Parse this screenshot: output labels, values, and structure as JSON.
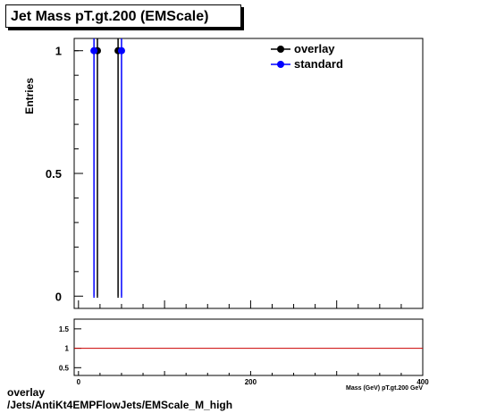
{
  "title": "Jet Mass pT.gt.200 (EMScale)",
  "caption_line1": "overlay",
  "caption_line2": "/Jets/AntiKt4EMPFlowJets/EMScale_M_high",
  "chart_data": [
    {
      "type": "scatter",
      "ylabel": "Entries",
      "xlim": [
        -5,
        400
      ],
      "ylim": [
        -0.05,
        1.05
      ],
      "y_ticks": [
        {
          "value": 0,
          "label": "0"
        },
        {
          "value": 0.5,
          "label": "0.5"
        },
        {
          "value": 1,
          "label": "1"
        }
      ],
      "legend": {
        "placement": "top-right"
      },
      "series": [
        {
          "name": "overlay",
          "color": "#000000",
          "x": [
            22,
            46
          ],
          "y": [
            1,
            1
          ]
        },
        {
          "name": "standard",
          "color": "#0000ff",
          "x": [
            18,
            50
          ],
          "y": [
            1,
            1
          ]
        }
      ]
    },
    {
      "type": "line",
      "xlabel": "Mass (GeV) pT.gt.200 GeV",
      "xlim": [
        -5,
        400
      ],
      "ylim": [
        0.3,
        1.75
      ],
      "x_ticks": [
        {
          "value": 0,
          "label": "0"
        },
        {
          "value": 200,
          "label": "200"
        },
        {
          "value": 400,
          "label": "400"
        }
      ],
      "y_ticks": [
        {
          "value": 0.5,
          "label": "0.5"
        },
        {
          "value": 1,
          "label": "1"
        },
        {
          "value": 1.5,
          "label": "1.5"
        }
      ],
      "reference_line": {
        "y": 1,
        "color": "#cc0000"
      }
    }
  ]
}
